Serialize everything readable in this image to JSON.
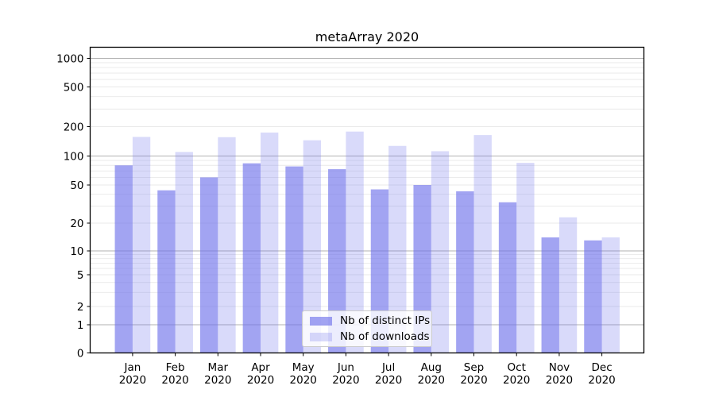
{
  "title": "metaArray 2020",
  "chart_data": {
    "type": "bar",
    "title": "metaArray 2020",
    "subtitle": "",
    "xlabel": "",
    "ylabel": "",
    "yscale": "symlog",
    "ylim": [
      0,
      1400
    ],
    "grid": true,
    "legend_position": "lower center",
    "y_ticks": [
      0,
      1,
      2,
      5,
      10,
      20,
      50,
      100,
      200,
      500,
      1000
    ],
    "categories": [
      "Jan 2020",
      "Feb 2020",
      "Mar 2020",
      "Apr 2020",
      "May 2020",
      "Jun 2020",
      "Jul 2020",
      "Aug 2020",
      "Sep 2020",
      "Oct 2020",
      "Nov 2020",
      "Dec 2020"
    ],
    "series": [
      {
        "name": "Nb of distinct IPs",
        "color": "rgba(105,108,234,0.62)",
        "values": [
          80,
          44,
          60,
          84,
          78,
          73,
          45,
          50,
          43,
          33,
          14,
          13
        ]
      },
      {
        "name": "Nb of downloads",
        "color": "rgba(105,108,234,0.25)",
        "values": [
          157,
          110,
          156,
          174,
          145,
          178,
          127,
          112,
          164,
          85,
          23,
          14
        ]
      }
    ],
    "colors": {
      "major_gridline": "#b2b2b2",
      "minor_gridline": "#e9e9e9",
      "spine": "#000000",
      "tick_label": "#000000",
      "legend_border": "#cccccc"
    }
  }
}
